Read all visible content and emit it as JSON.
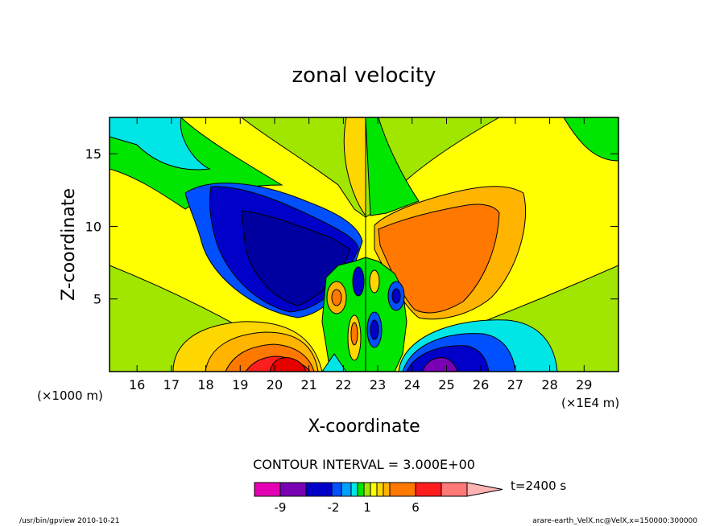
{
  "chart_data": {
    "type": "contour",
    "title": "zonal velocity",
    "xlabel": "X-coordinate",
    "ylabel": "Z-coordinate",
    "x_ticks": [
      "16",
      "17",
      "18",
      "19",
      "20",
      "21",
      "22",
      "23",
      "24",
      "25",
      "26",
      "27",
      "28",
      "29"
    ],
    "y_ticks": [
      "5",
      "10",
      "15"
    ],
    "x_unit_note": "(×1E4 m)",
    "y_unit_note": "(×1000 m)",
    "contour_interval": "CONTOUR INTERVAL = 3.000E+00",
    "time_label": "t=2400 s",
    "colorbar": {
      "colors": [
        "#e600b4",
        "#7a00b3",
        "#0000c8",
        "#0050ff",
        "#00a0ff",
        "#00e6e6",
        "#00e600",
        "#a0e600",
        "#ffff00",
        "#ffd700",
        "#ffb400",
        "#ff7800",
        "#ff1e1e",
        "#ff7878",
        "#ffb4b4"
      ],
      "tick_labels": [
        "-9",
        "-2",
        "1",
        "6"
      ]
    },
    "xlim": [
      15.2,
      30
    ],
    "ylim": [
      0,
      17.5
    ],
    "footer_left": "/usr/bin/gpview   2010-10-21",
    "footer_right": "arare-earth_VelX.nc@VelX,x=150000:300000"
  }
}
